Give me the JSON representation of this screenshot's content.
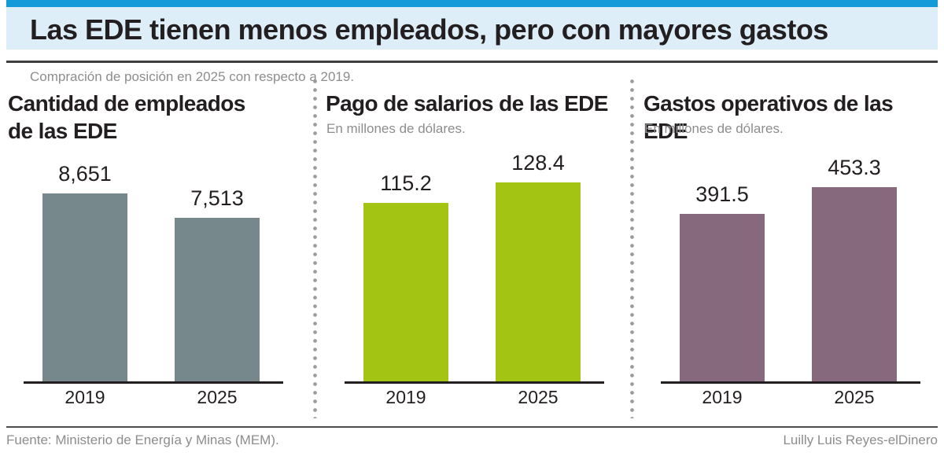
{
  "header": {
    "title": "Las EDE tienen menos empleados, pero con mayores gastos",
    "subtitle": "Compración de posición en 2025 con respecto a 2019.",
    "accent_color": "#149ad8",
    "banner_background": "#ddeef8"
  },
  "chart_data": [
    {
      "type": "bar",
      "title": "Cantidad de empleados de las EDE",
      "unit": "",
      "categories": [
        "2019",
        "2025"
      ],
      "values": [
        8651,
        7513
      ],
      "value_labels": [
        "8,651",
        "7,513"
      ],
      "bar_color": "#76888c",
      "ylim": [
        0,
        8651
      ],
      "grid": false,
      "legend": "none"
    },
    {
      "type": "bar",
      "title": "Pago de salarios de las EDE",
      "unit": "En millones de dólares.",
      "categories": [
        "2019",
        "2025"
      ],
      "values": [
        115.2,
        128.4
      ],
      "value_labels": [
        "115.2",
        "128.4"
      ],
      "bar_color": "#a4c414",
      "ylim": [
        0,
        128.4
      ],
      "grid": false,
      "legend": "none"
    },
    {
      "type": "bar",
      "title": "Gastos operativos de las EDE",
      "unit": "En millones de dólares.",
      "categories": [
        "2019",
        "2025"
      ],
      "values": [
        391.5,
        453.3
      ],
      "value_labels": [
        "391.5",
        "453.3"
      ],
      "bar_color": "#87697e",
      "ylim": [
        0,
        453.3
      ],
      "grid": false,
      "legend": "none"
    }
  ],
  "footer": {
    "source": "Fuente: Ministerio de Energía y Minas (MEM).",
    "credit": "Luilly Luis Reyes-elDinero"
  }
}
